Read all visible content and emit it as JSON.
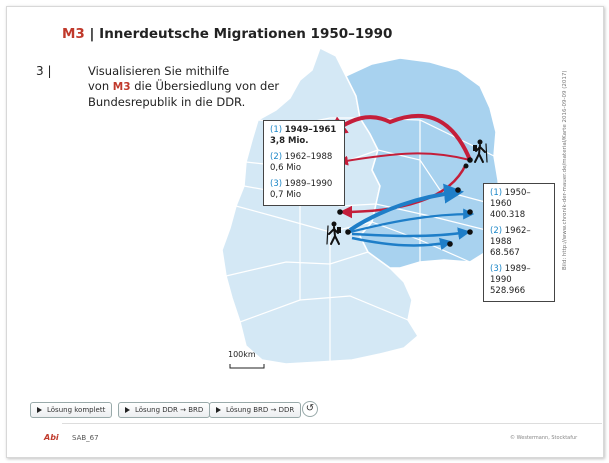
{
  "header": {
    "code": "M3",
    "separator": "|",
    "title": "Innerdeutsche Migrationen 1950–1990"
  },
  "task": {
    "number": "3",
    "separator": "|",
    "line1": "Visualisieren Sie mithilfe",
    "line2_pre": "von",
    "ref": "M3",
    "line2_post": "die Übersiedlung von der",
    "line3": "Bundesrepublik in die DDR."
  },
  "legend_west": [
    {
      "num": "(1)",
      "years": "1949–1961",
      "value": "3,8 Mio."
    },
    {
      "num": "(2)",
      "years": "1962–1988",
      "value": "0,6 Mio"
    },
    {
      "num": "(3)",
      "years": "1989–1990",
      "value": "0,7 Mio"
    }
  ],
  "legend_east": [
    {
      "num": "(1)",
      "years": "1950–1960",
      "value": "400.318"
    },
    {
      "num": "(2)",
      "years": "1962–1988",
      "value": "68.567"
    },
    {
      "num": "(3)",
      "years": "1989–1990",
      "value": "528.966"
    }
  ],
  "scale_label": "100km",
  "credit": "Bild: http://www.chronik-der-mauer.de/material/Karte 2016-09-09 (2017)",
  "buttons": {
    "complete": "Lösung komplett",
    "ddr_brd": "Lösung DDR → BRD",
    "brd_ddr": "Lösung BRD → DDR"
  },
  "icons": {
    "play": "play-icon",
    "reset": "reset-icon",
    "hiker": "hiker-icon"
  },
  "footer": {
    "logo": "Abi",
    "code": "SAB_67",
    "copyright": "© Westermann, Stocktafur"
  },
  "colors": {
    "west": "#d4e8f5",
    "east": "#a8d2ef",
    "red_arrow": "#c41e3a",
    "blue_arrow": "#1e7ec8"
  }
}
